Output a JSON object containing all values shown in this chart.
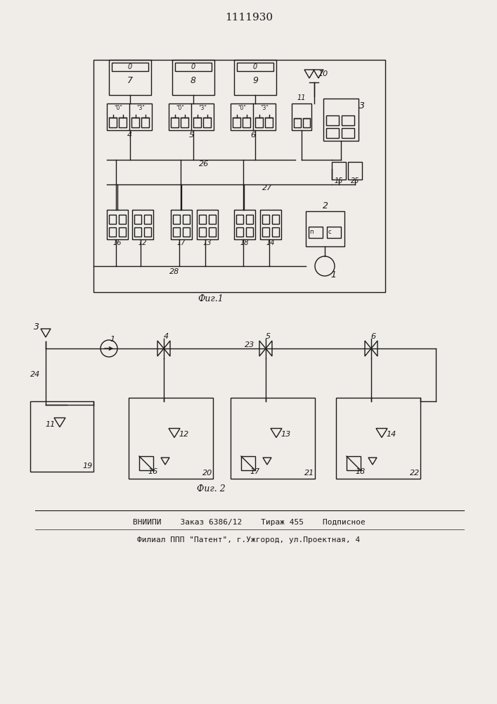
{
  "title": "1111930",
  "fig1_caption": "Фиг.1",
  "fig2_caption": "Фиг. 2",
  "footer_line1": "ВНИИПИ    Заказ 6386/12    Тираж 455    Подписное",
  "footer_line2": "Филиал ППП \"Патент\", г.Ужгород, ул.Проектная, 4",
  "bg_color": "#f0ede8",
  "line_color": "#1a1a1a",
  "line_width": 1.0
}
